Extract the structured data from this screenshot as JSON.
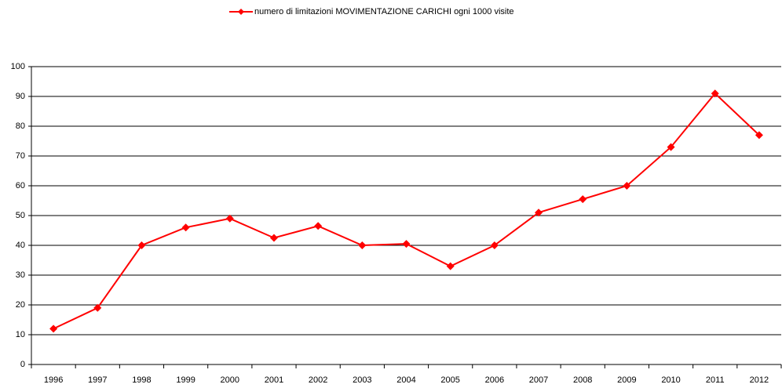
{
  "chart_data": {
    "type": "line",
    "categories": [
      "1996",
      "1997",
      "1998",
      "1999",
      "2000",
      "2001",
      "2002",
      "2003",
      "2004",
      "2005",
      "2006",
      "2007",
      "2008",
      "2009",
      "2010",
      "2011",
      "2012"
    ],
    "series": [
      {
        "name": "numero di limitazioni MOVIMENTAZIONE CARICHI ogni 1000 visite",
        "color": "#ff0000",
        "values": [
          12,
          19,
          40,
          46,
          49,
          42.5,
          46.5,
          40,
          40.5,
          33,
          40,
          51,
          55.5,
          60,
          73,
          91,
          77
        ]
      }
    ],
    "ylim": [
      0,
      100
    ],
    "yticks": [
      0,
      10,
      20,
      30,
      40,
      50,
      60,
      70,
      80,
      90,
      100
    ],
    "grid": true,
    "legend": "top"
  }
}
